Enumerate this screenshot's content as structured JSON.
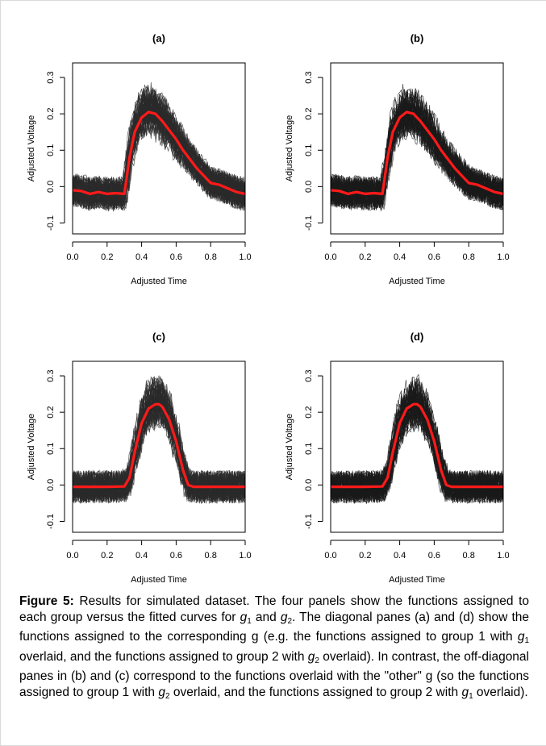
{
  "chart_data": [
    {
      "type": "line",
      "title": "(a)",
      "xlabel": "Adjusted Time",
      "ylabel": "Adjusted Voltage",
      "xlim": [
        0,
        1
      ],
      "ylim": [
        -0.13,
        0.34
      ],
      "x_ticks": [
        "0.0",
        "0.2",
        "0.4",
        "0.6",
        "0.8",
        "1.0"
      ],
      "y_ticks": [
        "-0.1",
        "0.0",
        "0.1",
        "0.2",
        "0.3"
      ],
      "grid": false,
      "colors": {
        "functions": "#2b2b2b",
        "fit": "#ff1a1a"
      },
      "series": [
        {
          "x": [
            0.0,
            0.05,
            0.1,
            0.15,
            0.2,
            0.25,
            0.3,
            0.33,
            0.36,
            0.4,
            0.44,
            0.48,
            0.52,
            0.56,
            0.6,
            0.64,
            0.68,
            0.72,
            0.76,
            0.8,
            0.85,
            0.9,
            0.95,
            1.0
          ],
          "values": [
            -0.01,
            -0.012,
            -0.02,
            -0.015,
            -0.02,
            -0.018,
            -0.02,
            0.08,
            0.15,
            0.19,
            0.205,
            0.2,
            0.18,
            0.155,
            0.13,
            0.1,
            0.075,
            0.05,
            0.03,
            0.01,
            0.005,
            -0.005,
            -0.015,
            -0.02
          ]
        }
      ]
    },
    {
      "type": "line",
      "title": "(b)",
      "xlabel": "Adjusted Time",
      "ylabel": "Adjusted Voltage",
      "xlim": [
        0,
        1
      ],
      "ylim": [
        -0.13,
        0.34
      ],
      "x_ticks": [
        "0.0",
        "0.2",
        "0.4",
        "0.6",
        "0.8",
        "1.0"
      ],
      "y_ticks": [
        "-0.1",
        "0.0",
        "0.1",
        "0.2",
        "0.3"
      ],
      "grid": false,
      "colors": {
        "functions": "#1a1a1a",
        "fit": "#ff1a1a"
      },
      "series": [
        {
          "x": [
            0.0,
            0.05,
            0.1,
            0.15,
            0.2,
            0.25,
            0.3,
            0.33,
            0.36,
            0.4,
            0.44,
            0.48,
            0.52,
            0.56,
            0.6,
            0.64,
            0.68,
            0.72,
            0.76,
            0.8,
            0.85,
            0.9,
            0.95,
            1.0
          ],
          "values": [
            -0.01,
            -0.012,
            -0.02,
            -0.015,
            -0.02,
            -0.018,
            -0.02,
            0.08,
            0.15,
            0.19,
            0.205,
            0.2,
            0.18,
            0.155,
            0.13,
            0.1,
            0.075,
            0.05,
            0.03,
            0.01,
            0.005,
            -0.005,
            -0.015,
            -0.02
          ]
        }
      ]
    },
    {
      "type": "line",
      "title": "(c)",
      "xlabel": "Adjusted Time",
      "ylabel": "Adjusted Voltage",
      "xlim": [
        0,
        1
      ],
      "ylim": [
        -0.13,
        0.34
      ],
      "x_ticks": [
        "0.0",
        "0.2",
        "0.4",
        "0.6",
        "0.8",
        "1.0"
      ],
      "y_ticks": [
        "-0.1",
        "0.0",
        "0.1",
        "0.2",
        "0.3"
      ],
      "grid": false,
      "colors": {
        "functions": "#2b2b2b",
        "fit": "#ff1a1a"
      },
      "series": [
        {
          "x": [
            0.0,
            0.1,
            0.2,
            0.3,
            0.33,
            0.36,
            0.4,
            0.44,
            0.48,
            0.5,
            0.52,
            0.56,
            0.6,
            0.64,
            0.67,
            0.7,
            0.8,
            0.9,
            1.0
          ],
          "values": [
            -0.005,
            -0.005,
            -0.005,
            -0.004,
            0.02,
            0.09,
            0.17,
            0.21,
            0.222,
            0.222,
            0.215,
            0.18,
            0.12,
            0.04,
            0.0,
            -0.005,
            -0.005,
            -0.005,
            -0.005
          ]
        }
      ]
    },
    {
      "type": "line",
      "title": "(d)",
      "xlabel": "Adjusted Time",
      "ylabel": "Adjusted Voltage",
      "xlim": [
        0,
        1
      ],
      "ylim": [
        -0.13,
        0.34
      ],
      "x_ticks": [
        "0.0",
        "0.2",
        "0.4",
        "0.6",
        "0.8",
        "1.0"
      ],
      "y_ticks": [
        "-0.1",
        "0.0",
        "0.1",
        "0.2",
        "0.3"
      ],
      "grid": false,
      "colors": {
        "functions": "#1a1a1a",
        "fit": "#ff1a1a"
      },
      "series": [
        {
          "x": [
            0.0,
            0.1,
            0.2,
            0.3,
            0.33,
            0.36,
            0.4,
            0.44,
            0.48,
            0.5,
            0.52,
            0.56,
            0.6,
            0.64,
            0.67,
            0.7,
            0.8,
            0.9,
            1.0
          ],
          "values": [
            -0.005,
            -0.005,
            -0.005,
            -0.004,
            0.02,
            0.09,
            0.17,
            0.21,
            0.222,
            0.222,
            0.215,
            0.18,
            0.12,
            0.04,
            0.0,
            -0.005,
            -0.005,
            -0.005,
            -0.005
          ]
        }
      ]
    }
  ],
  "caption": {
    "label": "Figure 5:",
    "p1": " Results for simulated dataset. The four panels show the functions assigned to each group versus the fitted curves for ",
    "g": "g",
    "s1": "1",
    "s2": "2",
    "and": " and ",
    "p2": ". The diagonal panes (a) and (d) show the functions assigned to the corresponding g (e.g. the functions assigned to group 1 with ",
    "p3": " overlaid, and the functions assigned to group 2 with ",
    "p4": " overlaid). In contrast, the off-diagonal panes in (b) and (c) correspond to the functions overlaid with the \"other\" g (so the functions assigned to group 1 with ",
    "p5": " overlaid, and the functions assigned to group 2 with ",
    "p6": " overlaid)."
  }
}
